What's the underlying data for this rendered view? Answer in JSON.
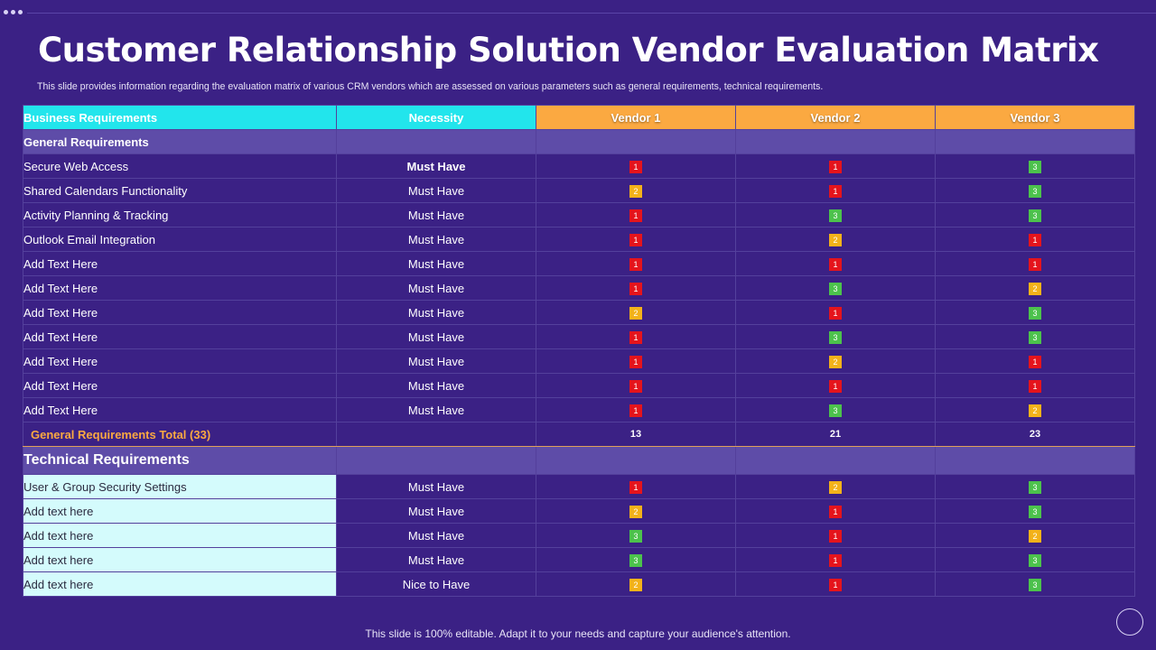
{
  "title": "Customer Relationship Solution Vendor Evaluation Matrix",
  "subtitle": "This slide provides information regarding the evaluation matrix of various CRM vendors which are assessed on various parameters such as general requirements, technical requirements.",
  "colors": {
    "score_1": "#e5141c",
    "score_2": "#f3b21a",
    "score_3": "#4cc24c",
    "header_cyan": "#22e5ec",
    "header_orange": "#fba941",
    "background": "#3b2185"
  },
  "headers": [
    "Business Requirements",
    "Necessity",
    "Vendor 1",
    "Vendor 2",
    "Vendor 3"
  ],
  "general": {
    "title": "General Requirements",
    "rows": [
      {
        "label": "Secure Web Access",
        "necessity": "Must Have",
        "scores": [
          1,
          1,
          3
        ]
      },
      {
        "label": "Shared Calendars Functionality",
        "necessity": "Must Have",
        "scores": [
          2,
          1,
          3
        ]
      },
      {
        "label": "Activity Planning & Tracking",
        "necessity": "Must Have",
        "scores": [
          1,
          3,
          3
        ]
      },
      {
        "label": "Outlook Email Integration",
        "necessity": "Must Have",
        "scores": [
          1,
          2,
          1
        ]
      },
      {
        "label": "Add Text Here",
        "necessity": "Must Have",
        "scores": [
          1,
          1,
          1
        ]
      },
      {
        "label": "Add Text Here",
        "necessity": "Must Have",
        "scores": [
          1,
          3,
          2
        ]
      },
      {
        "label": "Add Text Here",
        "necessity": "Must Have",
        "scores": [
          2,
          1,
          3
        ]
      },
      {
        "label": "Add Text Here",
        "necessity": "Must Have",
        "scores": [
          1,
          3,
          3
        ]
      },
      {
        "label": "Add Text Here",
        "necessity": "Must Have",
        "scores": [
          1,
          2,
          1
        ]
      },
      {
        "label": "Add Text Here",
        "necessity": "Must Have",
        "scores": [
          1,
          1,
          1
        ]
      },
      {
        "label": "Add Text Here",
        "necessity": "Must Have",
        "scores": [
          1,
          3,
          2
        ]
      }
    ],
    "total_label": "General Requirements Total (33)",
    "totals": [
      13,
      21,
      23
    ]
  },
  "technical": {
    "title": "Technical Requirements",
    "rows": [
      {
        "label": "User & Group Security Settings",
        "necessity": "Must Have",
        "scores": [
          1,
          2,
          3
        ]
      },
      {
        "label": "Add text here",
        "necessity": "Must Have",
        "scores": [
          2,
          1,
          3
        ]
      },
      {
        "label": "Add text here",
        "necessity": "Must Have",
        "scores": [
          3,
          1,
          2
        ]
      },
      {
        "label": "Add text here",
        "necessity": "Must Have",
        "scores": [
          3,
          1,
          3
        ]
      },
      {
        "label": "Add text here",
        "necessity": "Nice to Have",
        "scores": [
          2,
          1,
          3
        ]
      }
    ]
  },
  "footer": "This slide is 100% editable. Adapt it to your needs and capture your audience's attention."
}
